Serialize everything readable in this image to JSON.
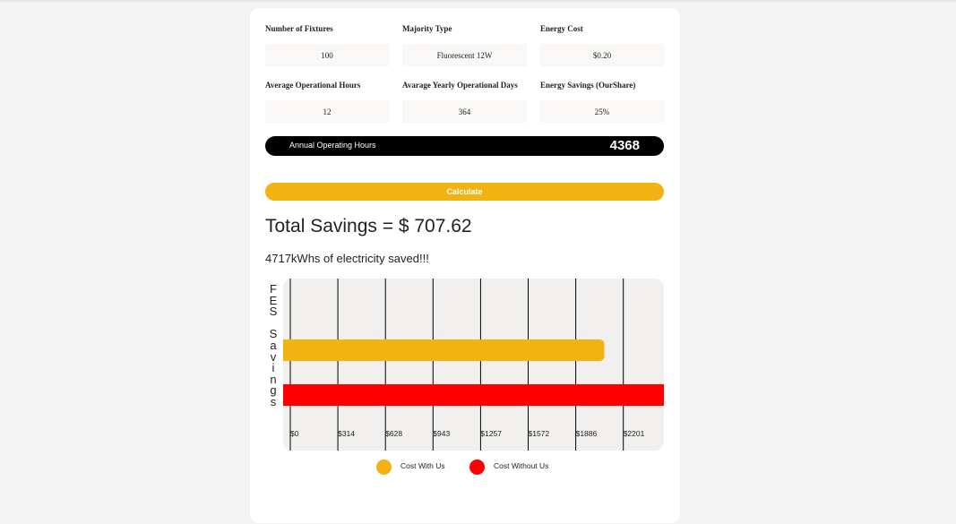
{
  "form": {
    "fields": [
      {
        "label": "Number of Fixtures",
        "value": "100"
      },
      {
        "label": "Majority Type",
        "value": "Fluorescent 12W"
      },
      {
        "label": "Energy Cost",
        "value": "$0.20"
      },
      {
        "label": "Average Operational Hours",
        "value": "12"
      },
      {
        "label": "Avarage Yearly Operational Days",
        "value": "364"
      },
      {
        "label": "Energy Savings (OurShare)",
        "value": "25%"
      }
    ],
    "annual_hours_label": "Annual Operating Hours",
    "annual_hours_value": "4368",
    "calculate_label": "Calculate"
  },
  "results": {
    "total_savings": "Total Savings = $ 707.62",
    "kwh_saved": "4717kWhs of electricity saved!!!"
  },
  "colors": {
    "with_us": "#f2b211",
    "without_us": "#ff0000"
  },
  "chart_data": {
    "type": "bar",
    "orientation": "horizontal",
    "ylabel": "FES Savings",
    "xlabel": "",
    "x_ticks": [
      "$0",
      "$314",
      "$628",
      "$943",
      "$1257",
      "$1572",
      "$1886",
      "$2201"
    ],
    "xlim": [
      0,
      2201
    ],
    "grid": true,
    "legend_position": "bottom",
    "series": [
      {
        "name": "Cost With Us",
        "value": 2122.85,
        "color": "#f2b211"
      },
      {
        "name": "Cost Without Us",
        "value": 2830.46,
        "color": "#ff0000"
      }
    ]
  }
}
